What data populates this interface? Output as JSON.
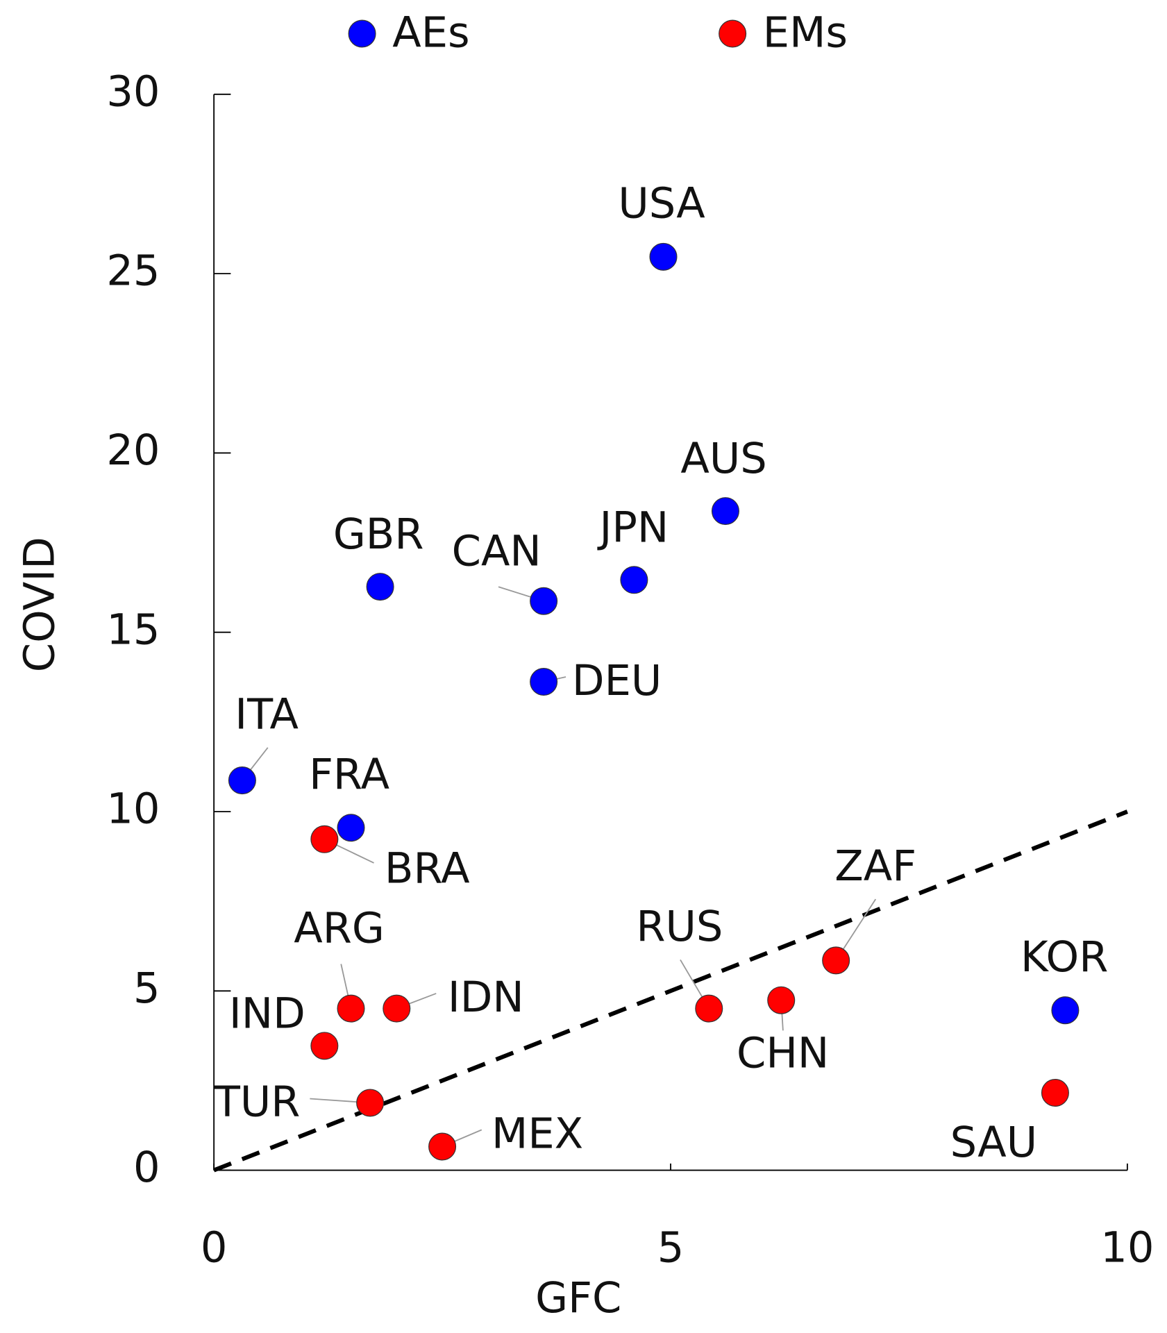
{
  "chart_data": {
    "type": "scatter",
    "x_label": "GFC",
    "y_label": "COVID",
    "xlim": [
      0,
      10
    ],
    "xticks": [
      0,
      5,
      10
    ],
    "ylim": [
      0,
      30
    ],
    "yticks": [
      0,
      5,
      10,
      15,
      20,
      25,
      30
    ],
    "diagonal": true,
    "grid": false,
    "legend": "top",
    "series": [
      {
        "name": "AEs",
        "color": "#0000ff",
        "labels": [
          "USA",
          "AUS",
          "JPN",
          "GBR",
          "CAN",
          "DEU",
          "ITA",
          "FRA",
          "KOR"
        ],
        "x": [
          4.92,
          5.6,
          4.6,
          1.82,
          3.61,
          3.61,
          0.31,
          1.5,
          9.32
        ],
        "y": [
          25.47,
          18.38,
          16.46,
          16.27,
          15.87,
          13.62,
          10.87,
          9.55,
          4.46
        ]
      },
      {
        "name": "EMs",
        "color": "#ff0000",
        "labels": [
          "BRA",
          "ZAF",
          "ARG",
          "IDN",
          "RUS",
          "CHN",
          "IND",
          "TUR",
          "MEX",
          "SAU"
        ],
        "x": [
          1.21,
          6.81,
          1.5,
          2.0,
          5.42,
          6.21,
          1.21,
          1.71,
          2.5,
          9.21
        ],
        "y": [
          9.23,
          5.85,
          4.51,
          4.51,
          4.51,
          4.74,
          3.47,
          1.88,
          0.66,
          2.16
        ]
      }
    ]
  }
}
